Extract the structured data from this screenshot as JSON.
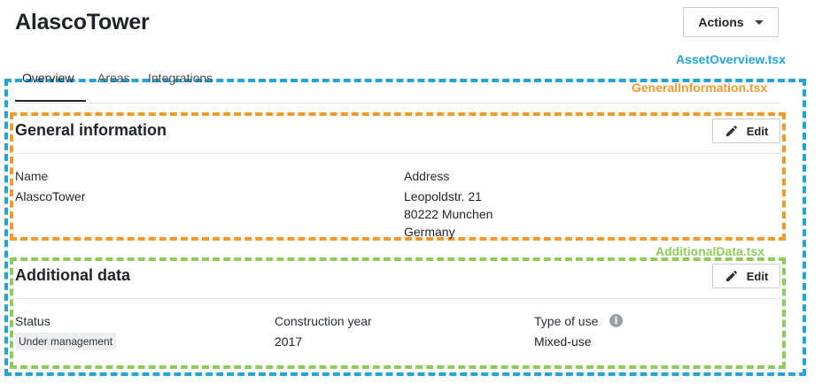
{
  "header": {
    "title": "AlascoTower",
    "actions_label": "Actions"
  },
  "annotations": {
    "asset_overview": "AssetOverview.tsx",
    "general_information": "GeneralInformation.tsx",
    "additional_data": "AdditionalData.tsx",
    "colors": {
      "asset_overview": "#22a4d6",
      "general_information": "#f39a2b",
      "additional_data": "#8ecb5b"
    }
  },
  "tabs": [
    {
      "label": "Overview",
      "active": true
    },
    {
      "label": "Areas",
      "active": false
    },
    {
      "label": "Integrations",
      "active": false
    }
  ],
  "general_information": {
    "title": "General information",
    "edit_label": "Edit",
    "name_label": "Name",
    "name_value": "AlascoTower",
    "address_label": "Address",
    "address_line1": "Leopoldstr. 21",
    "address_line2": "80222 Munchen",
    "address_line3": "Germany"
  },
  "additional_data": {
    "title": "Additional data",
    "edit_label": "Edit",
    "status_label": "Status",
    "status_value": "Under management",
    "construction_year_label": "Construction year",
    "construction_year_value": "2017",
    "type_of_use_label": "Type of use",
    "type_of_use_value": "Mixed-use"
  },
  "icons": {
    "caret": "chevron-down-icon",
    "edit": "pencil-icon",
    "info": "info-icon"
  }
}
